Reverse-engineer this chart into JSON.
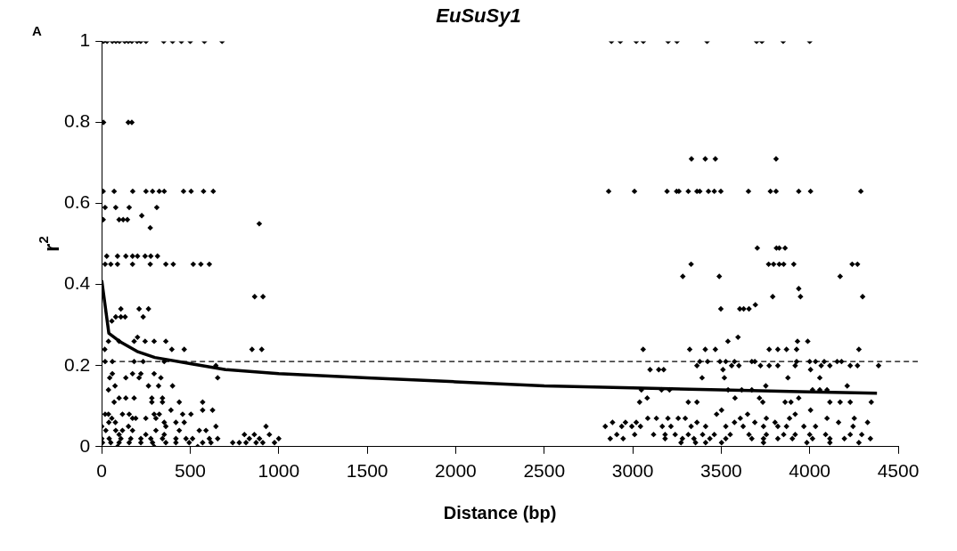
{
  "chart_data": {
    "type": "scatter",
    "title": "EuSuSy1",
    "xlabel": "Distance (bp)",
    "ylabel": "r$^{2}$",
    "annotations": [
      "A"
    ],
    "xlim": [
      0,
      4500
    ],
    "xticks": [
      0,
      500,
      1000,
      1500,
      2000,
      2500,
      3000,
      3500,
      4000,
      4500
    ],
    "ylim": [
      0,
      1
    ],
    "yticks": [
      0,
      0.2,
      0.4,
      0.6,
      0.8,
      1
    ],
    "grid": false,
    "legend": false,
    "ref_lines": [
      {
        "axis": "y",
        "value": 0.21,
        "color": "#000000",
        "line_style": "dashed"
      }
    ],
    "series": [
      {
        "type": "scatter",
        "color": "#000000",
        "marker": "diamond",
        "x": [
          10,
          30,
          60,
          80,
          100,
          130,
          150,
          170,
          200,
          220,
          250,
          350,
          400,
          450,
          500,
          580,
          680,
          10,
          150,
          170,
          8,
          70,
          175,
          250,
          287,
          325,
          353,
          462,
          505,
          575,
          630,
          19,
          79,
          155,
          311,
          226,
          8,
          98,
          121,
          145,
          890,
          274,
          28,
          89,
          136,
          174,
          202,
          245,
          277,
          315,
          19,
          51,
          89,
          174,
          274,
          362,
          404,
          517,
          560,
          608,
          864,
          911,
          108,
          211,
          264,
          79,
          108,
          132,
          234,
          57,
          202,
          38,
          98,
          183,
          245,
          296,
          362,
          17,
          396,
          466,
          849,
          904,
          19,
          60,
          183,
          234,
          353,
          645,
          60,
          174,
          221,
          296,
          45,
          136,
          211,
          334,
          655,
          75,
          264,
          321,
          400,
          38,
          98,
          136,
          183,
          283,
          343,
          70,
          283,
          343,
          438,
          570,
          391,
          570,
          626,
          19,
          38,
          117,
          155,
          296,
          325,
          457,
          504,
          57,
          174,
          192,
          249,
          306,
          40,
          77,
          353,
          419,
          466,
          0,
          151,
          362,
          645,
          928,
          23,
          79,
          117,
          174,
          306,
          438,
          551,
          589,
          98,
          249,
          353,
          806,
          862,
          947,
          0,
          42,
          108,
          164,
          221,
          277,
          343,
          419,
          476,
          513,
          608,
          655,
          834,
          891,
          1000,
          4,
          51,
          98,
          155,
          221,
          287,
          362,
          419,
          494,
          570,
          617,
          740,
          777,
          815,
          872,
          910,
          976,
          89,
          296,
          542,
          2880,
          2930,
          3020,
          3060,
          3200,
          3250,
          3420,
          3700,
          3730,
          3850,
          4000,
          3332,
          3410,
          3467,
          3810,
          2864,
          3010,
          3194,
          3248,
          3261,
          3314,
          3363,
          3379,
          3428,
          3461,
          3498,
          3654,
          3778,
          3810,
          3938,
          4005,
          4289,
          3704,
          3812,
          3828,
          3861,
          3330,
          3768,
          3796,
          3828,
          3853,
          3910,
          4240,
          4270,
          3283,
          4172,
          3489,
          3938,
          3791,
          3948,
          4299,
          3693,
          3498,
          3605,
          3627,
          3657,
          3595,
          3538,
          3931,
          3989,
          3059,
          3322,
          3410,
          3467,
          3771,
          3820,
          3869,
          3926,
          4278,
          3379,
          3423,
          3493,
          3526,
          3575,
          3673,
          3690,
          3926,
          4000,
          4033,
          4082,
          4155,
          4180,
          3363,
          3559,
          3600,
          3722,
          3771,
          3820,
          3918,
          4065,
          4114,
          4229,
          4270,
          4389,
          3098,
          3147,
          3175,
          3510,
          4005,
          3392,
          3518,
          3877,
          4057,
          3752,
          4212,
          3049,
          3163,
          3208,
          3539,
          3616,
          3673,
          4016,
          4057,
          4098,
          3082,
          3578,
          3716,
          3938,
          3039,
          3314,
          3363,
          3735,
          3861,
          3894,
          4114,
          4172,
          4229,
          4348,
          3502,
          4005,
          3474,
          3649,
          3918,
          3085,
          3134,
          3199,
          3257,
          3297,
          3608,
          3755,
          3886,
          4098,
          4252,
          2886,
          2959,
          3020,
          3363,
          3575,
          3690,
          3804,
          4163,
          4327,
          2845,
          2938,
          2995,
          3044,
          3167,
          3216,
          3330,
          3412,
          3526,
          3624,
          3739,
          3820,
          3869,
          3967,
          4033,
          4245,
          2910,
          3011,
          3118,
          3183,
          3240,
          3314,
          3395,
          3461,
          3551,
          3657,
          3755,
          3853,
          3918,
          4000,
          4090,
          4229,
          4294,
          2873,
          2946,
          3183,
          3281,
          3346,
          3436,
          3526,
          3673,
          3739,
          3820,
          3902,
          4016,
          4114,
          4196,
          4343,
          3273,
          3355,
          3412,
          3502,
          3739,
          3984,
          4114,
          4278
        ],
        "values": [
          1,
          1,
          1,
          1,
          1,
          1,
          1,
          1,
          1,
          1,
          1,
          1,
          1,
          1,
          1,
          1,
          1,
          0.8,
          0.8,
          0.8,
          0.63,
          0.63,
          0.63,
          0.63,
          0.63,
          0.63,
          0.63,
          0.63,
          0.63,
          0.63,
          0.63,
          0.59,
          0.59,
          0.59,
          0.59,
          0.57,
          0.56,
          0.56,
          0.56,
          0.56,
          0.55,
          0.54,
          0.47,
          0.47,
          0.47,
          0.47,
          0.47,
          0.47,
          0.47,
          0.47,
          0.45,
          0.45,
          0.45,
          0.45,
          0.45,
          0.45,
          0.45,
          0.45,
          0.45,
          0.45,
          0.37,
          0.37,
          0.34,
          0.34,
          0.34,
          0.32,
          0.32,
          0.32,
          0.32,
          0.31,
          0.27,
          0.26,
          0.26,
          0.26,
          0.26,
          0.26,
          0.26,
          0.24,
          0.24,
          0.24,
          0.24,
          0.24,
          0.21,
          0.21,
          0.21,
          0.21,
          0.21,
          0.2,
          0.18,
          0.18,
          0.18,
          0.18,
          0.17,
          0.17,
          0.17,
          0.17,
          0.17,
          0.15,
          0.15,
          0.15,
          0.15,
          0.14,
          0.12,
          0.12,
          0.12,
          0.12,
          0.12,
          0.11,
          0.11,
          0.11,
          0.11,
          0.11,
          0.09,
          0.09,
          0.09,
          0.08,
          0.08,
          0.08,
          0.08,
          0.08,
          0.08,
          0.08,
          0.08,
          0.07,
          0.07,
          0.07,
          0.07,
          0.07,
          0.06,
          0.06,
          0.06,
          0.06,
          0.06,
          0.05,
          0.05,
          0.05,
          0.05,
          0.05,
          0.04,
          0.04,
          0.04,
          0.04,
          0.04,
          0.04,
          0.04,
          0.04,
          0.03,
          0.03,
          0.03,
          0.03,
          0.03,
          0.03,
          0.02,
          0.02,
          0.02,
          0.02,
          0.02,
          0.02,
          0.02,
          0.02,
          0.02,
          0.02,
          0.02,
          0.02,
          0.02,
          0.02,
          0.02,
          0.01,
          0.01,
          0.01,
          0.01,
          0.01,
          0.01,
          0.01,
          0.01,
          0.01,
          0.01,
          0.01,
          0.01,
          0.01,
          0.01,
          0.01,
          0.01,
          0.01,
          0,
          0,
          0,
          1,
          1,
          1,
          1,
          1,
          1,
          1,
          1,
          1,
          1,
          1,
          0.71,
          0.71,
          0.71,
          0.71,
          0.63,
          0.63,
          0.63,
          0.63,
          0.63,
          0.63,
          0.63,
          0.63,
          0.63,
          0.63,
          0.63,
          0.63,
          0.63,
          0.63,
          0.63,
          0.63,
          0.63,
          0.49,
          0.49,
          0.49,
          0.49,
          0.45,
          0.45,
          0.45,
          0.45,
          0.45,
          0.45,
          0.45,
          0.45,
          0.42,
          0.42,
          0.42,
          0.39,
          0.37,
          0.37,
          0.37,
          0.35,
          0.34,
          0.34,
          0.34,
          0.34,
          0.27,
          0.26,
          0.26,
          0.26,
          0.24,
          0.24,
          0.24,
          0.24,
          0.24,
          0.24,
          0.24,
          0.24,
          0.24,
          0.21,
          0.21,
          0.21,
          0.21,
          0.21,
          0.21,
          0.21,
          0.21,
          0.21,
          0.21,
          0.21,
          0.21,
          0.21,
          0.2,
          0.2,
          0.2,
          0.2,
          0.2,
          0.2,
          0.2,
          0.2,
          0.2,
          0.2,
          0.2,
          0.2,
          0.19,
          0.19,
          0.19,
          0.19,
          0.19,
          0.17,
          0.17,
          0.17,
          0.17,
          0.15,
          0.15,
          0.14,
          0.14,
          0.14,
          0.14,
          0.14,
          0.14,
          0.14,
          0.14,
          0.14,
          0.12,
          0.12,
          0.12,
          0.12,
          0.11,
          0.11,
          0.11,
          0.11,
          0.11,
          0.11,
          0.11,
          0.11,
          0.11,
          0.11,
          0.09,
          0.09,
          0.08,
          0.08,
          0.08,
          0.07,
          0.07,
          0.07,
          0.07,
          0.07,
          0.07,
          0.07,
          0.07,
          0.07,
          0.07,
          0.06,
          0.06,
          0.06,
          0.06,
          0.06,
          0.06,
          0.06,
          0.06,
          0.06,
          0.05,
          0.05,
          0.05,
          0.05,
          0.05,
          0.05,
          0.05,
          0.05,
          0.05,
          0.05,
          0.05,
          0.05,
          0.05,
          0.05,
          0.05,
          0.05,
          0.03,
          0.03,
          0.03,
          0.03,
          0.03,
          0.03,
          0.03,
          0.03,
          0.03,
          0.03,
          0.03,
          0.03,
          0.03,
          0.03,
          0.03,
          0.03,
          0.03,
          0.02,
          0.02,
          0.02,
          0.02,
          0.02,
          0.02,
          0.02,
          0.02,
          0.02,
          0.02,
          0.02,
          0.02,
          0.02,
          0.02,
          0.02,
          0.01,
          0.01,
          0.01,
          0.01,
          0.01,
          0.01,
          0.01,
          0.01
        ]
      },
      {
        "type": "line",
        "color": "#000000",
        "marker": "none",
        "line_style": "solid",
        "x": [
          0,
          40,
          100,
          200,
          300,
          500,
          700,
          1000,
          1500,
          2000,
          2500,
          3000,
          3500,
          4000,
          4380
        ],
        "values": [
          0.41,
          0.28,
          0.26,
          0.235,
          0.22,
          0.205,
          0.19,
          0.18,
          0.17,
          0.16,
          0.15,
          0.145,
          0.14,
          0.135,
          0.132
        ]
      }
    ]
  }
}
